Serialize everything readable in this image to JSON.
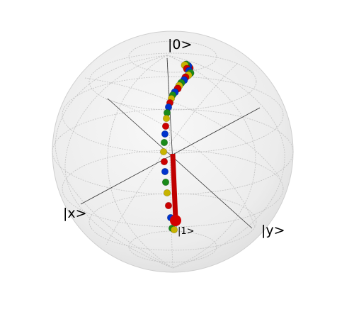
{
  "labels": {
    "ket0": "|0>",
    "ket1": "|1>",
    "ketx": "|x>",
    "kety": "|y>"
  },
  "colors": {
    "sphere_fill": "#efefef",
    "grid": "#c8c8c8",
    "axis": "#333333",
    "vector": "#c00000",
    "point_palette": [
      "#cc0000",
      "#0033cc",
      "#1a8a1a",
      "#c8b400"
    ]
  }
}
